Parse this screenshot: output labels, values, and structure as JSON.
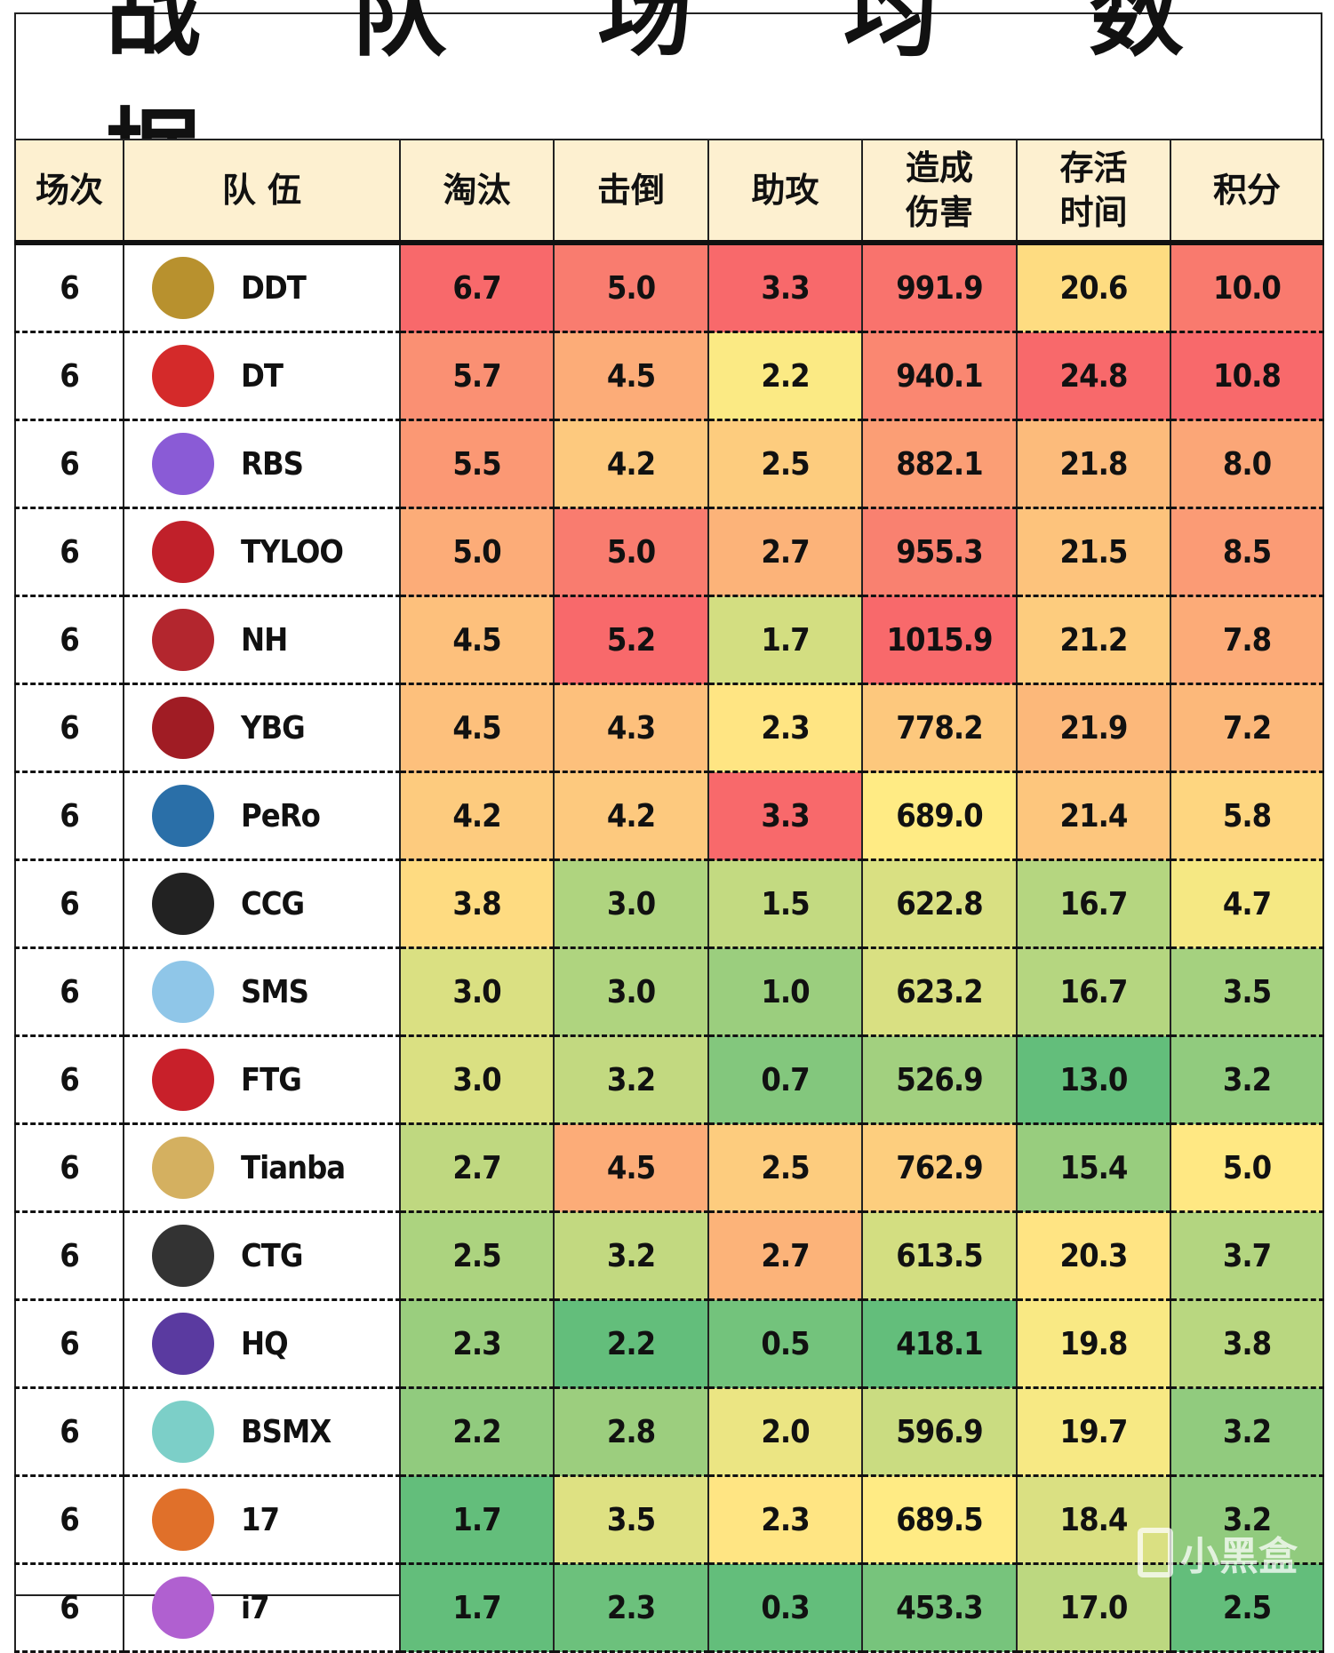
{
  "title": "战 队 场 均 数 据",
  "headers": [
    "场次",
    "队 伍",
    "淘汰",
    "击倒",
    "助攻",
    "造成\n伤害",
    "存活\n时间",
    "积分"
  ],
  "rows": [
    {
      "games": "6",
      "team": "DDT",
      "logo_color": "#b8912e",
      "kills": "6.7",
      "knocks": "5.0",
      "assists": "3.3",
      "damage": "991.9",
      "survival": "20.6",
      "points": "10.0"
    },
    {
      "games": "6",
      "team": "DT",
      "logo_color": "#d42a2a",
      "kills": "5.7",
      "knocks": "4.5",
      "assists": "2.2",
      "damage": "940.1",
      "survival": "24.8",
      "points": "10.8"
    },
    {
      "games": "6",
      "team": "RBS",
      "logo_color": "#8a5bd6",
      "kills": "5.5",
      "knocks": "4.2",
      "assists": "2.5",
      "damage": "882.1",
      "survival": "21.8",
      "points": "8.0"
    },
    {
      "games": "6",
      "team": "TYLOO",
      "logo_color": "#c0202a",
      "kills": "5.0",
      "knocks": "5.0",
      "assists": "2.7",
      "damage": "955.3",
      "survival": "21.5",
      "points": "8.5"
    },
    {
      "games": "6",
      "team": "NH",
      "logo_color": "#b3262e",
      "kills": "4.5",
      "knocks": "5.2",
      "assists": "1.7",
      "damage": "1015.9",
      "survival": "21.2",
      "points": "7.8"
    },
    {
      "games": "6",
      "team": "YBG",
      "logo_color": "#a01c24",
      "kills": "4.5",
      "knocks": "4.3",
      "assists": "2.3",
      "damage": "778.2",
      "survival": "21.9",
      "points": "7.2"
    },
    {
      "games": "6",
      "team": "PeRo",
      "logo_color": "#2a6fa8",
      "kills": "4.2",
      "knocks": "4.2",
      "assists": "3.3",
      "damage": "689.0",
      "survival": "21.4",
      "points": "5.8"
    },
    {
      "games": "6",
      "team": "CCG",
      "logo_color": "#222222",
      "kills": "3.8",
      "knocks": "3.0",
      "assists": "1.5",
      "damage": "622.8",
      "survival": "16.7",
      "points": "4.7"
    },
    {
      "games": "6",
      "team": "SMS",
      "logo_color": "#8fc6e8",
      "kills": "3.0",
      "knocks": "3.0",
      "assists": "1.0",
      "damage": "623.2",
      "survival": "16.7",
      "points": "3.5"
    },
    {
      "games": "6",
      "team": "FTG",
      "logo_color": "#c8202a",
      "kills": "3.0",
      "knocks": "3.2",
      "assists": "0.7",
      "damage": "526.9",
      "survival": "13.0",
      "points": "3.2"
    },
    {
      "games": "6",
      "team": "Tianba",
      "logo_color": "#d4b060",
      "kills": "2.7",
      "knocks": "4.5",
      "assists": "2.5",
      "damage": "762.9",
      "survival": "15.4",
      "points": "5.0"
    },
    {
      "games": "6",
      "team": "CTG",
      "logo_color": "#333333",
      "kills": "2.5",
      "knocks": "3.2",
      "assists": "2.7",
      "damage": "613.5",
      "survival": "20.3",
      "points": "3.7"
    },
    {
      "games": "6",
      "team": "HQ",
      "logo_color": "#5a3aa0",
      "kills": "2.3",
      "knocks": "2.2",
      "assists": "0.5",
      "damage": "418.1",
      "survival": "19.8",
      "points": "3.8"
    },
    {
      "games": "6",
      "team": "BSMX",
      "logo_color": "#7ccfc8",
      "kills": "2.2",
      "knocks": "2.8",
      "assists": "2.0",
      "damage": "596.9",
      "survival": "19.7",
      "points": "3.2"
    },
    {
      "games": "6",
      "team": "17",
      "logo_color": "#e0702a",
      "kills": "1.7",
      "knocks": "3.5",
      "assists": "2.3",
      "damage": "689.5",
      "survival": "18.4",
      "points": "3.2"
    },
    {
      "games": "6",
      "team": "i7",
      "logo_color": "#b060d0",
      "kills": "1.7",
      "knocks": "2.3",
      "assists": "0.3",
      "damage": "453.3",
      "survival": "17.0",
      "points": "2.5"
    }
  ],
  "scale_colors": {
    "low": "#63be7b",
    "mid": "#ffeb84",
    "high": "#f8696b"
  },
  "watermark": "小黑盒"
}
